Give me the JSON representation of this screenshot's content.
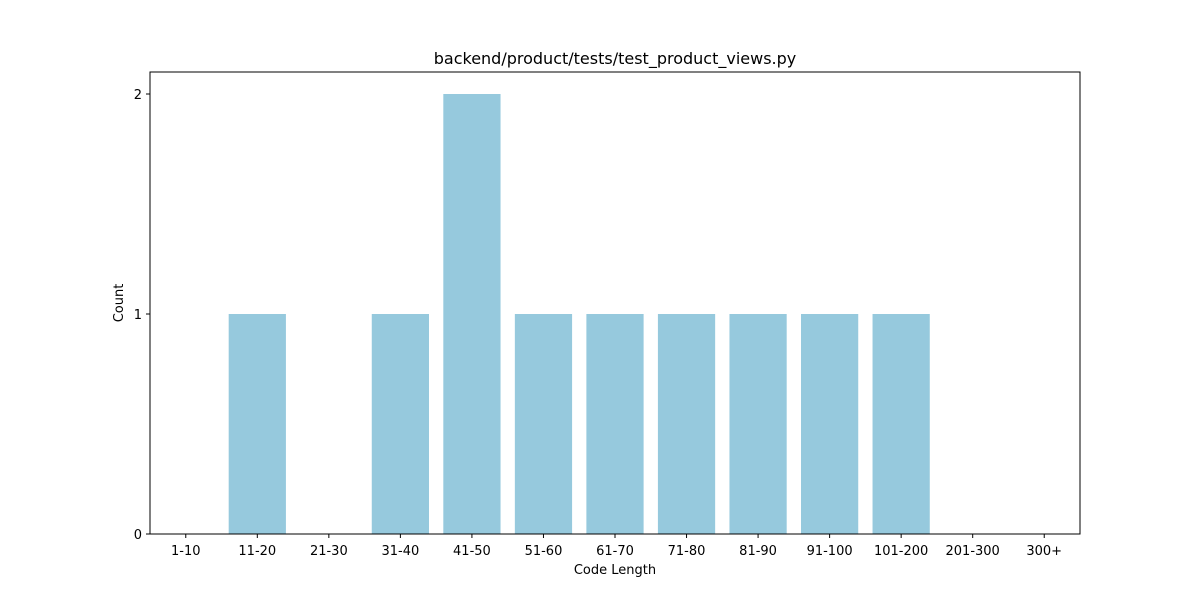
{
  "chart_data": {
    "type": "bar",
    "title": "backend/product/tests/test_product_views.py",
    "xlabel": "Code Length",
    "ylabel": "Count",
    "categories": [
      "1-10",
      "11-20",
      "21-30",
      "31-40",
      "41-50",
      "51-60",
      "61-70",
      "71-80",
      "81-90",
      "91-100",
      "101-200",
      "201-300",
      "300+"
    ],
    "values": [
      0,
      1,
      0,
      1,
      2,
      1,
      1,
      1,
      1,
      1,
      1,
      0,
      0
    ],
    "ylim": [
      0,
      2.1
    ],
    "yticks": [
      0,
      1,
      2
    ],
    "grid": false,
    "bar_color": "#96c9dd"
  }
}
